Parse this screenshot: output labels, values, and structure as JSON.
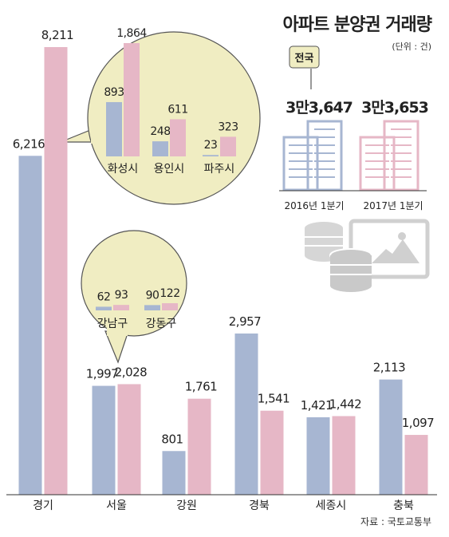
{
  "colors": {
    "series_2016": "#a7b6d2",
    "series_2017": "#e6b7c6",
    "bubble": "#f0edc2",
    "bubble_stroke": "#555555",
    "icon_gray": "#cfcfcf"
  },
  "header": {
    "title": "아파트 분양권 거래량",
    "unit": "(단위 : 건)",
    "national_label": "전국"
  },
  "national": [
    {
      "value_text": "3만3,647",
      "period": "2016년 1분기",
      "value": 33647
    },
    {
      "value_text": "3만3,653",
      "period": "2017년 1분기",
      "value": 33653
    }
  ],
  "source": "자료 : 국토교통부",
  "chart_data": [
    {
      "type": "bar",
      "categories": [
        "경기",
        "서울",
        "강원",
        "경북",
        "세종시",
        "충북"
      ],
      "value_labels": [
        [
          "6,216",
          "8,211"
        ],
        [
          "1,997",
          "2,028"
        ],
        [
          "801",
          "1,761"
        ],
        [
          "2,957",
          "1,541"
        ],
        [
          "1,421",
          "1,442"
        ],
        [
          "2,113",
          "1,097"
        ]
      ],
      "series": [
        {
          "values": [
            6216,
            1997,
            801,
            2957,
            1421,
            2113
          ]
        },
        {
          "values": [
            8211,
            2028,
            1761,
            1541,
            1442,
            1097
          ]
        }
      ],
      "ylim": [
        0,
        8211
      ]
    },
    {
      "type": "bar",
      "categories": [
        "화성시",
        "용인시",
        "파주시"
      ],
      "value_labels": [
        [
          "893",
          "1,864"
        ],
        [
          "248",
          "611"
        ],
        [
          "23",
          "323"
        ]
      ],
      "series": [
        {
          "values": [
            893,
            248,
            23
          ]
        },
        {
          "values": [
            1864,
            611,
            323
          ]
        }
      ],
      "ylim": [
        0,
        1864
      ]
    },
    {
      "type": "bar",
      "categories": [
        "강남구",
        "강동구"
      ],
      "value_labels": [
        [
          "62",
          "93"
        ],
        [
          "90",
          "122"
        ]
      ],
      "series": [
        {
          "values": [
            62,
            90
          ]
        },
        {
          "values": [
            93,
            122
          ]
        }
      ],
      "ylim": [
        0,
        122
      ]
    }
  ]
}
